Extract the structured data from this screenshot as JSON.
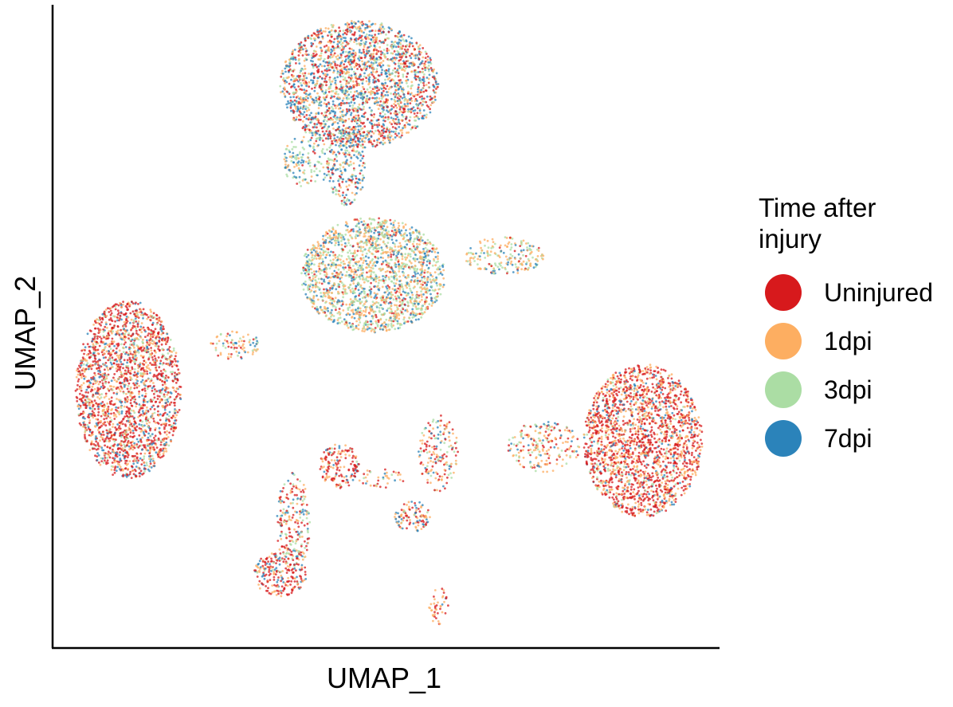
{
  "chart_data": {
    "type": "scatter",
    "xlabel": "UMAP_1",
    "ylabel": "UMAP_2",
    "grid": false,
    "ticks": false,
    "legend_placement": "right",
    "legend": {
      "title_lines": [
        "Time after",
        "injury"
      ],
      "entries": [
        {
          "label": "Uninjured",
          "color": "#d7191c"
        },
        {
          "label": "1dpi",
          "color": "#fdae61"
        },
        {
          "label": "3dpi",
          "color": "#abdda4"
        },
        {
          "label": "7dpi",
          "color": "#2b83ba"
        }
      ]
    },
    "xlim": [
      0,
      100
    ],
    "ylim": [
      0,
      100
    ],
    "clusters": [
      {
        "name_hint": "top-large",
        "cx": 46,
        "cy": 88,
        "rx": 12,
        "ry": 10,
        "weights": [
          0.3,
          0.25,
          0.15,
          0.3
        ],
        "density": 1.0
      },
      {
        "name_hint": "top-stalk",
        "cx": 44,
        "cy": 75,
        "rx": 3,
        "ry": 6,
        "weights": [
          0.15,
          0.2,
          0.25,
          0.4
        ],
        "density": 0.7
      },
      {
        "name_hint": "left-branch",
        "cx": 38,
        "cy": 76,
        "rx": 3.5,
        "ry": 4.5,
        "weights": [
          0.1,
          0.15,
          0.5,
          0.25
        ],
        "density": 0.5
      },
      {
        "name_hint": "center-middle",
        "cx": 48,
        "cy": 58,
        "rx": 11,
        "ry": 9,
        "weights": [
          0.08,
          0.35,
          0.35,
          0.22
        ],
        "density": 1.0
      },
      {
        "name_hint": "center-right-arm",
        "cx": 68,
        "cy": 61,
        "rx": 6,
        "ry": 3,
        "weights": [
          0.1,
          0.45,
          0.3,
          0.15
        ],
        "density": 0.6
      },
      {
        "name_hint": "left-large",
        "cx": 11,
        "cy": 40,
        "rx": 8,
        "ry": 14,
        "weights": [
          0.5,
          0.25,
          0.1,
          0.15
        ],
        "density": 1.0
      },
      {
        "name_hint": "left-arm",
        "cx": 27,
        "cy": 47,
        "rx": 4,
        "ry": 2.2,
        "weights": [
          0.2,
          0.45,
          0.25,
          0.1
        ],
        "density": 0.5
      },
      {
        "name_hint": "right-large",
        "cx": 89,
        "cy": 32,
        "rx": 9,
        "ry": 12,
        "weights": [
          0.55,
          0.3,
          0.05,
          0.1
        ],
        "density": 1.0
      },
      {
        "name_hint": "right-bridge",
        "cx": 74,
        "cy": 31,
        "rx": 5.5,
        "ry": 4,
        "weights": [
          0.25,
          0.45,
          0.2,
          0.1
        ],
        "density": 0.5
      },
      {
        "name_hint": "center-lower-stalk",
        "cx": 58,
        "cy": 30,
        "rx": 3,
        "ry": 6,
        "weights": [
          0.35,
          0.35,
          0.15,
          0.15
        ],
        "density": 0.5
      },
      {
        "name_hint": "lower-middle-small",
        "cx": 54,
        "cy": 20,
        "rx": 2.8,
        "ry": 2.5,
        "weights": [
          0.3,
          0.3,
          0.1,
          0.3
        ],
        "density": 0.8
      },
      {
        "name_hint": "lower-left-small",
        "cx": 43,
        "cy": 28,
        "rx": 3,
        "ry": 3.5,
        "weights": [
          0.5,
          0.3,
          0.05,
          0.15
        ],
        "density": 0.8
      },
      {
        "name_hint": "lower-left-bridge",
        "cx": 49,
        "cy": 26,
        "rx": 4,
        "ry": 1.5,
        "weights": [
          0.3,
          0.5,
          0.1,
          0.1
        ],
        "density": 0.35
      },
      {
        "name_hint": "lower-left-stalk",
        "cx": 36,
        "cy": 19,
        "rx": 2.5,
        "ry": 8,
        "weights": [
          0.4,
          0.25,
          0.2,
          0.15
        ],
        "density": 0.6
      },
      {
        "name_hint": "lower-left-bottom",
        "cx": 34,
        "cy": 11,
        "rx": 4,
        "ry": 3.5,
        "weights": [
          0.6,
          0.2,
          0.05,
          0.15
        ],
        "density": 0.8
      },
      {
        "name_hint": "bottom-tiny",
        "cx": 58,
        "cy": 6,
        "rx": 1.5,
        "ry": 3,
        "weights": [
          0.55,
          0.3,
          0.1,
          0.05
        ],
        "density": 0.5
      }
    ]
  }
}
